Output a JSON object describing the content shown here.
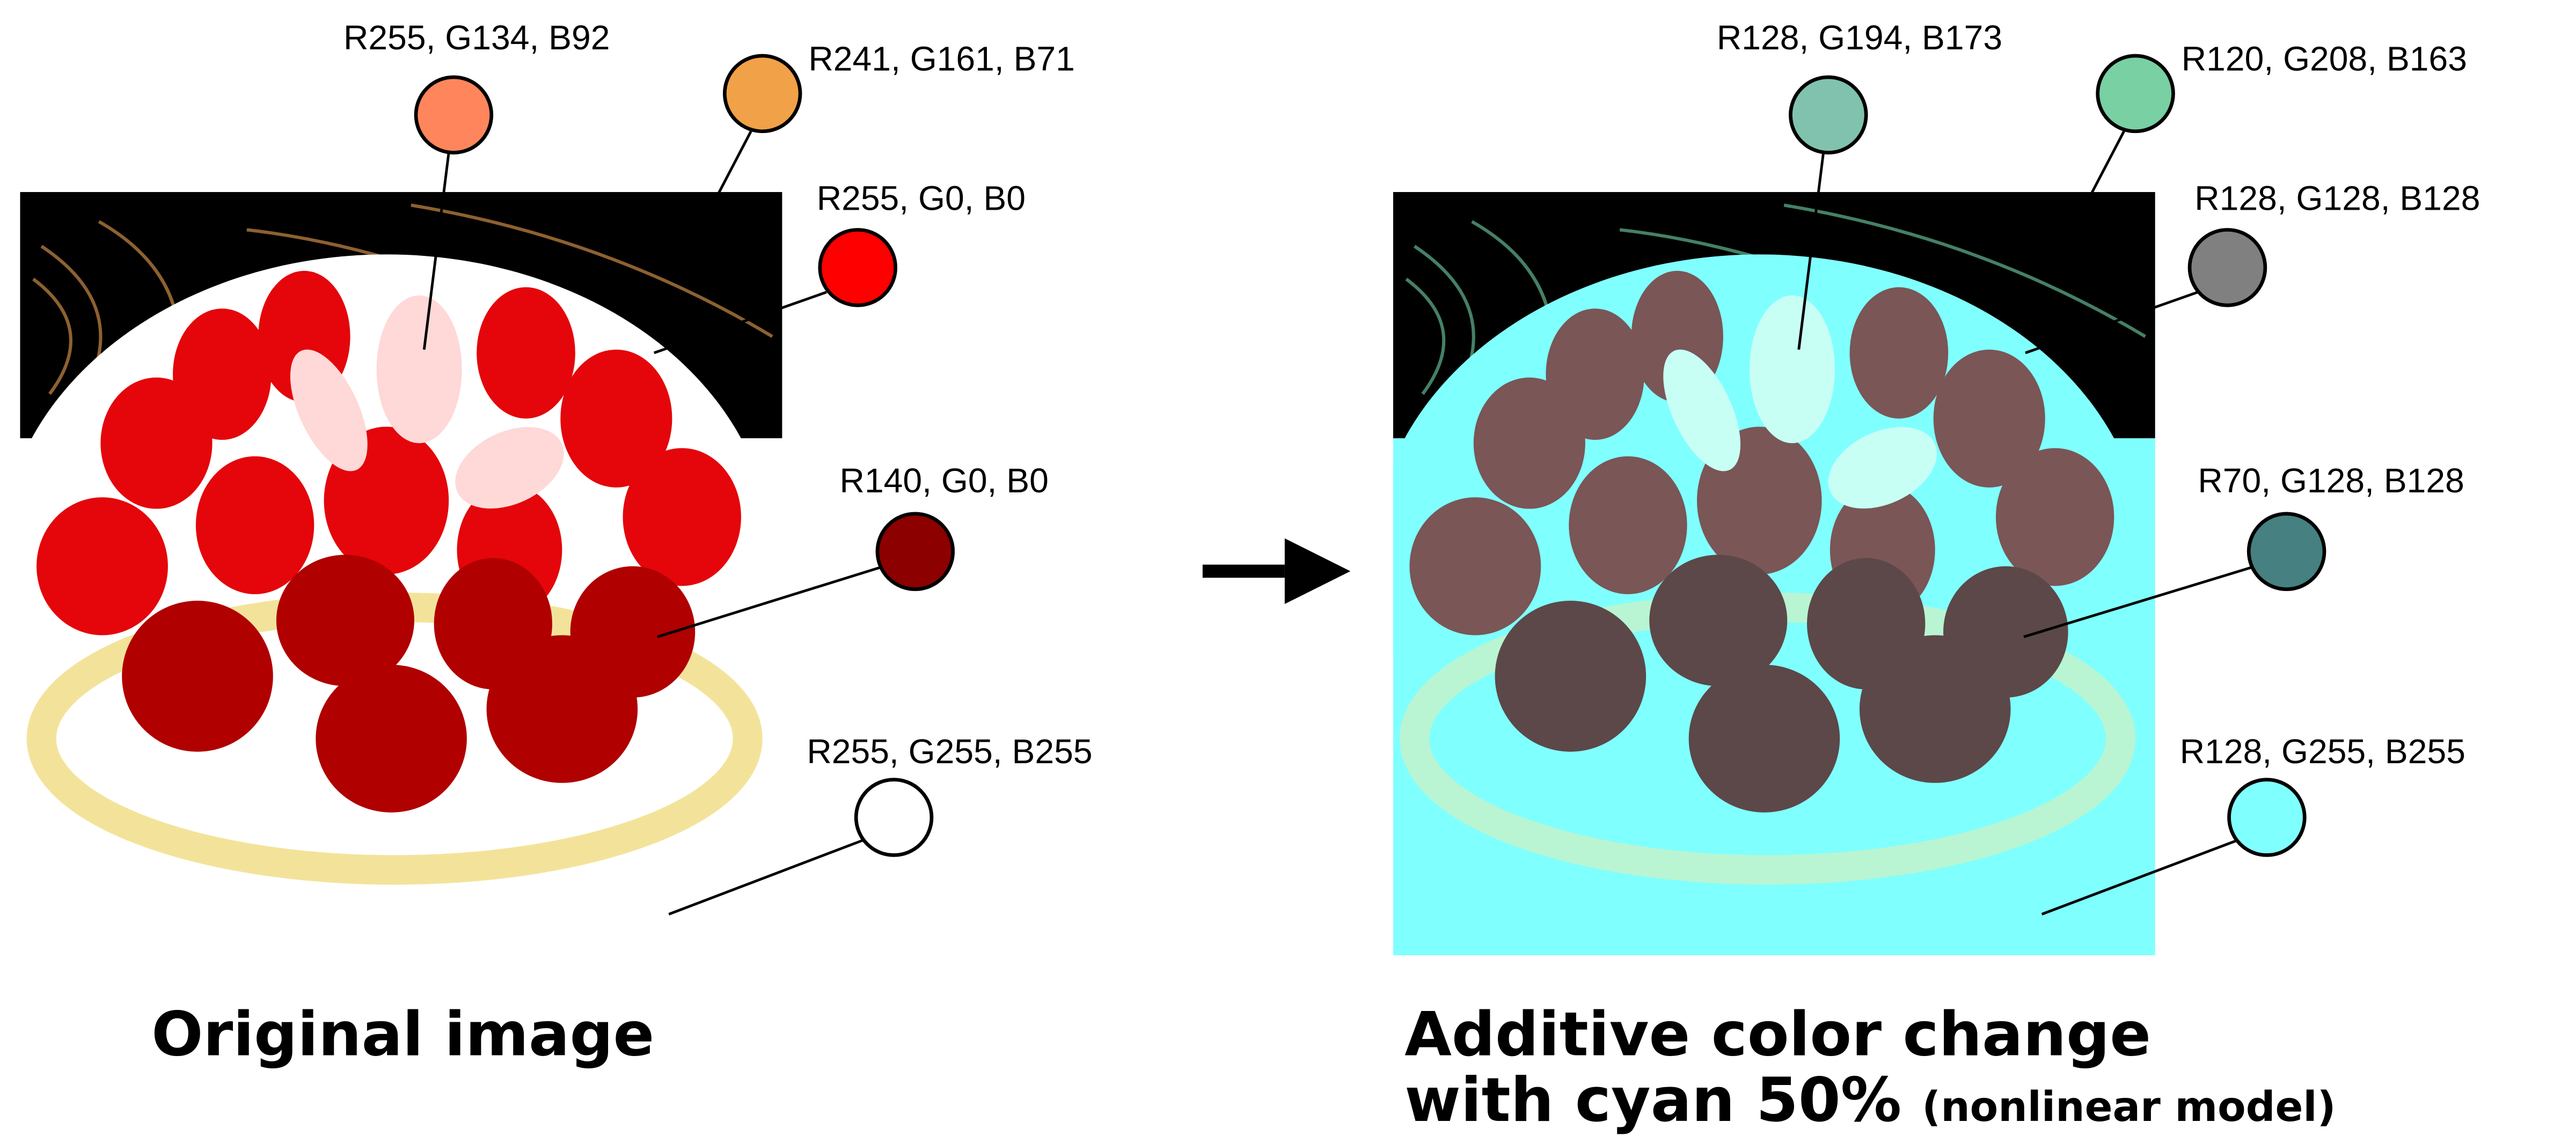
{
  "original": {
    "caption": "Original image",
    "swatches": [
      {
        "label": "R255, G134, B92",
        "color": "#ff865c"
      },
      {
        "label": "R241, G161, B71",
        "color": "#f1a147"
      },
      {
        "label": "R255, G0, B0",
        "color": "#ff0000"
      },
      {
        "label": "R140, G0, B0",
        "color": "#8c0000"
      },
      {
        "label": "R255, G255, B255",
        "color": "#ffffff"
      }
    ]
  },
  "result": {
    "caption_line1": "Additive color change",
    "caption_line2": "with cyan 50%",
    "caption_note": "(nonlinear model)",
    "swatches": [
      {
        "label": "R128, G194, B173",
        "color": "#80c2ad"
      },
      {
        "label": "R120, G208, B163",
        "color": "#78d0a3"
      },
      {
        "label": "R128, G128, B128",
        "color": "#808080"
      },
      {
        "label": "R70, G128, B128",
        "color": "#468080"
      },
      {
        "label": "R128, G255, B255",
        "color": "#80ffff"
      }
    ]
  },
  "arrow": {
    "icon": "right-arrow-icon"
  }
}
